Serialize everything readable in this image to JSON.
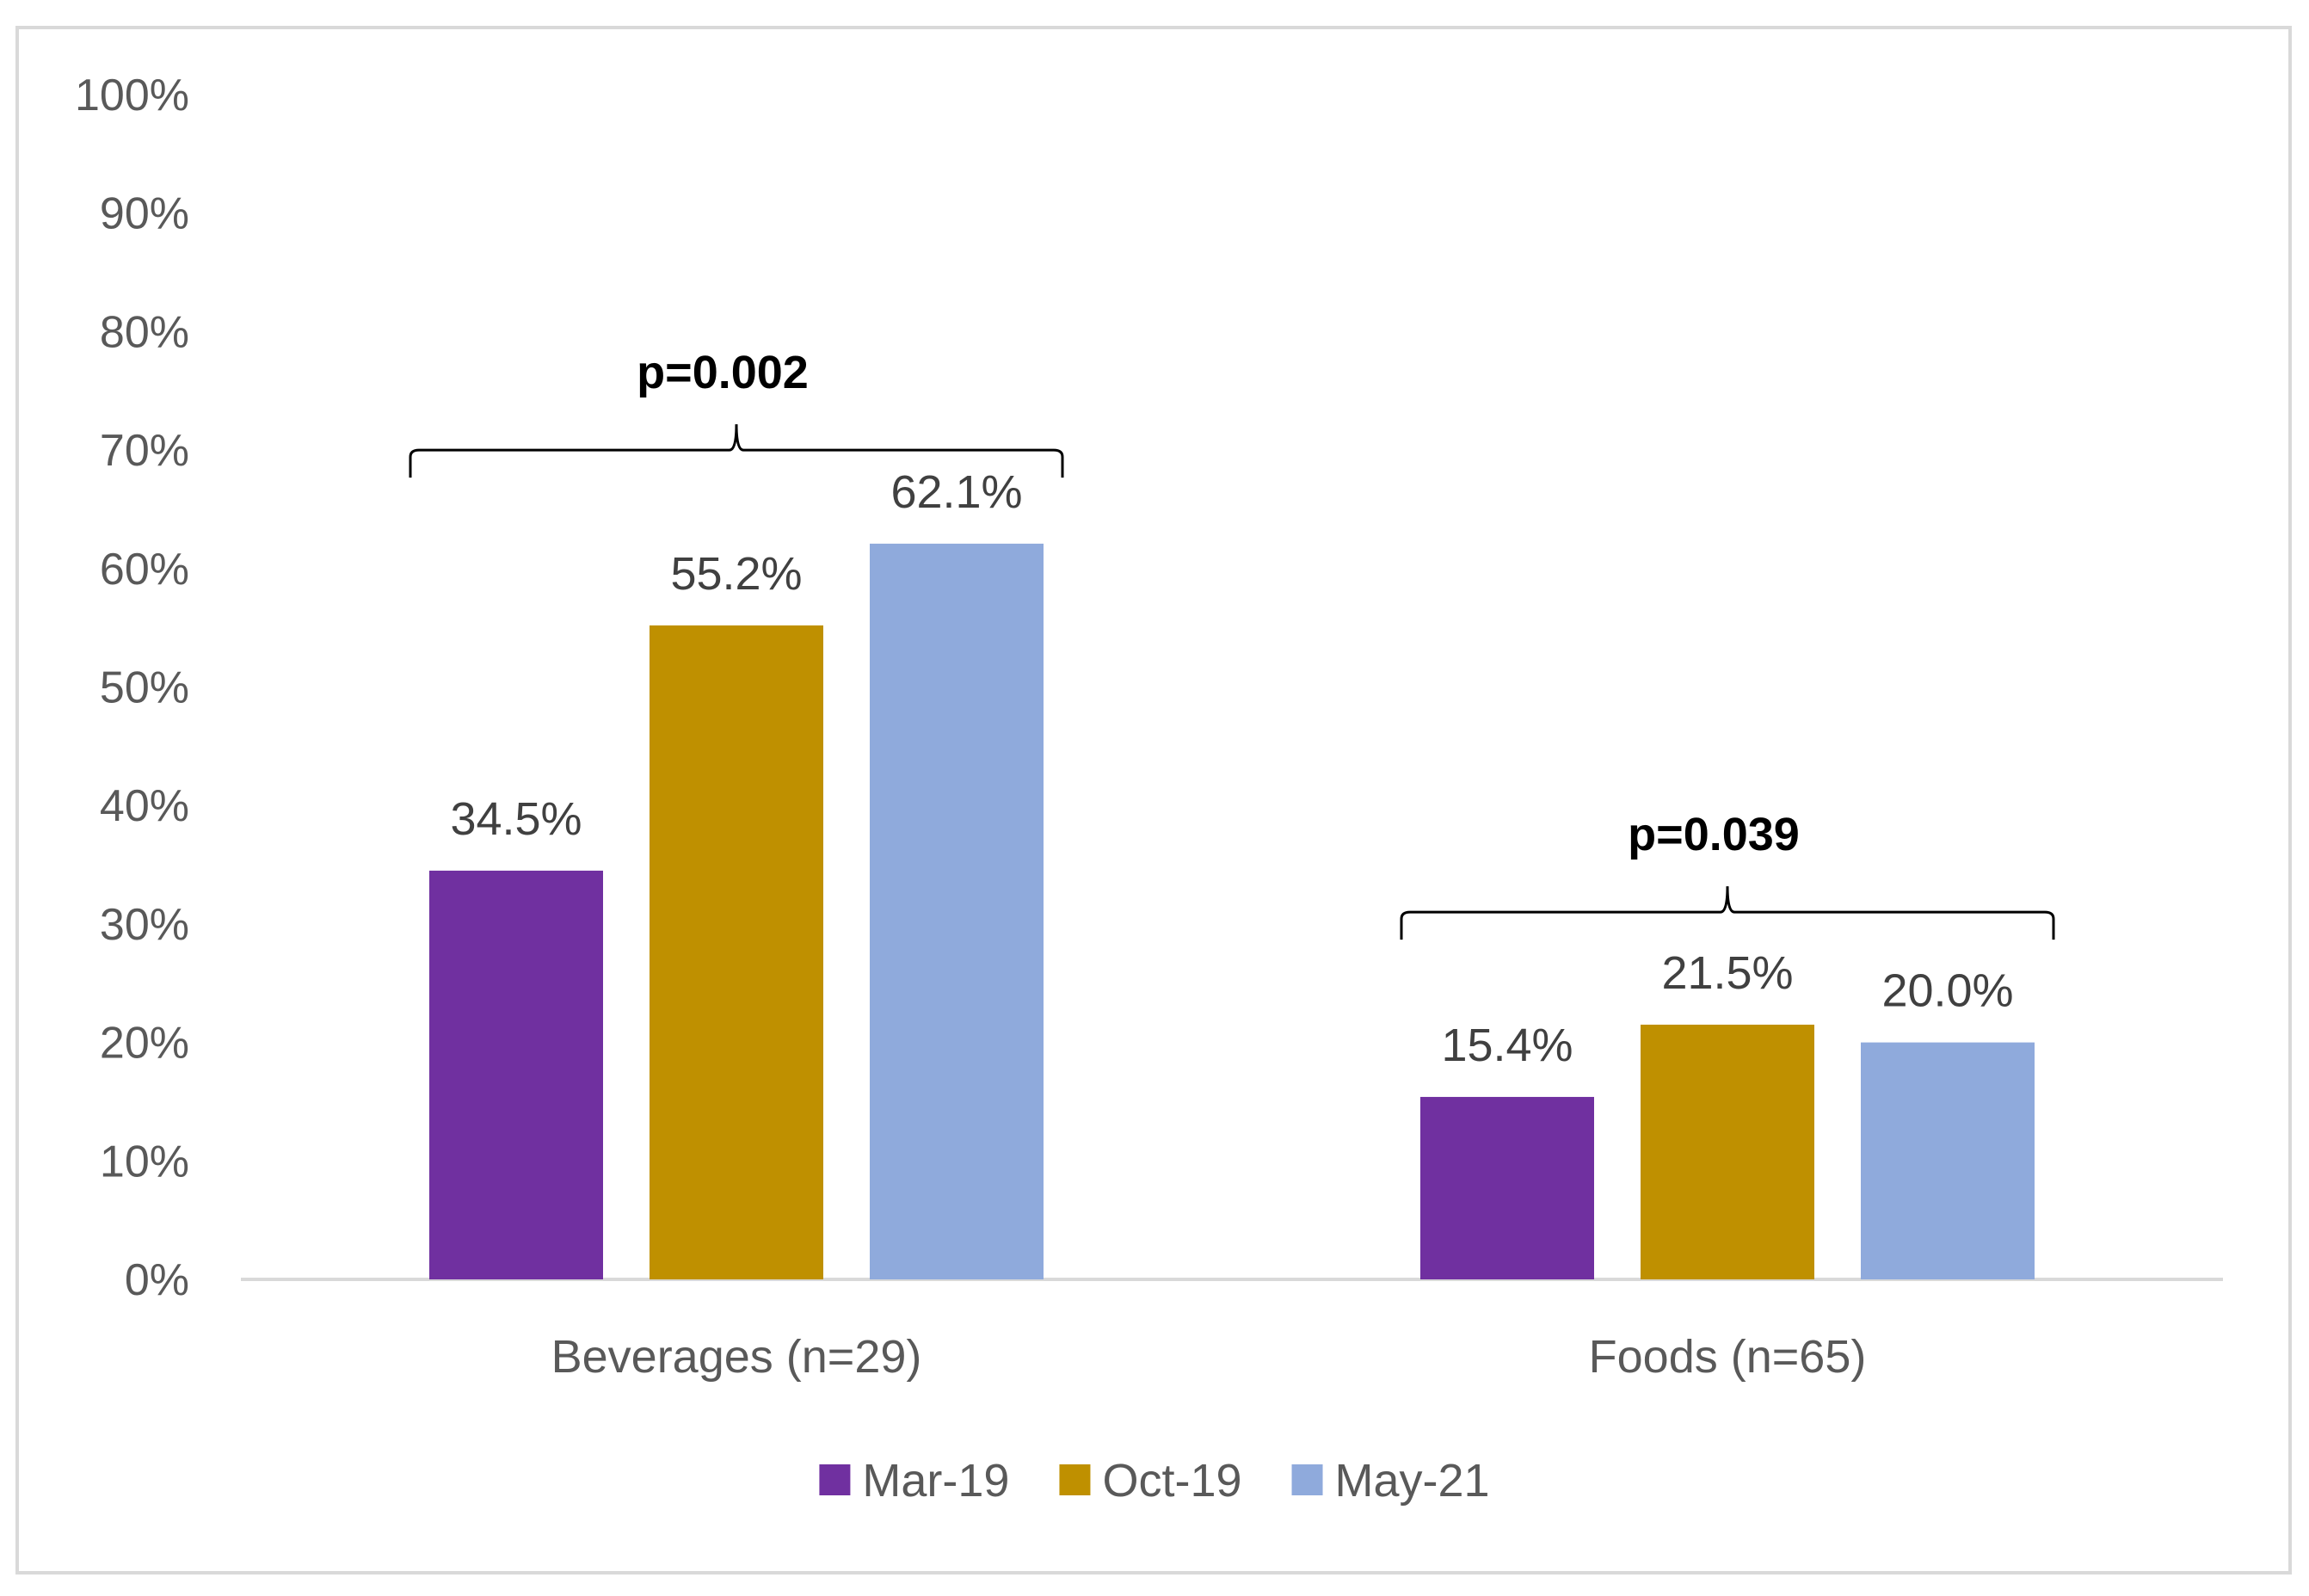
{
  "chart_data": {
    "type": "bar",
    "categories": [
      "Beverages (n=29)",
      "Foods (n=65)"
    ],
    "series": [
      {
        "name": "Mar-19",
        "color": "#7030a0",
        "values": [
          34.5,
          15.4
        ],
        "labels": [
          "34.5%",
          "15.4%"
        ]
      },
      {
        "name": "Oct-19",
        "color": "#bf9000",
        "values": [
          55.2,
          21.5
        ],
        "labels": [
          "55.2%",
          "21.5%"
        ]
      },
      {
        "name": "May-21",
        "color": "#8faadc",
        "values": [
          62.1,
          20.0
        ],
        "labels": [
          "62.1%",
          "20.0%"
        ]
      }
    ],
    "ylim": [
      0,
      100
    ],
    "yticks": [
      "0%",
      "10%",
      "20%",
      "30%",
      "40%",
      "50%",
      "60%",
      "70%",
      "80%",
      "90%",
      "100%"
    ],
    "annotations": [
      {
        "category": "Beverages (n=29)",
        "text": "p=0.002",
        "bracket_at": 70
      },
      {
        "category": "Foods (n=65)",
        "text": "p=0.039",
        "bracket_at": 31
      }
    ],
    "grid": false,
    "legend": "bottom"
  }
}
